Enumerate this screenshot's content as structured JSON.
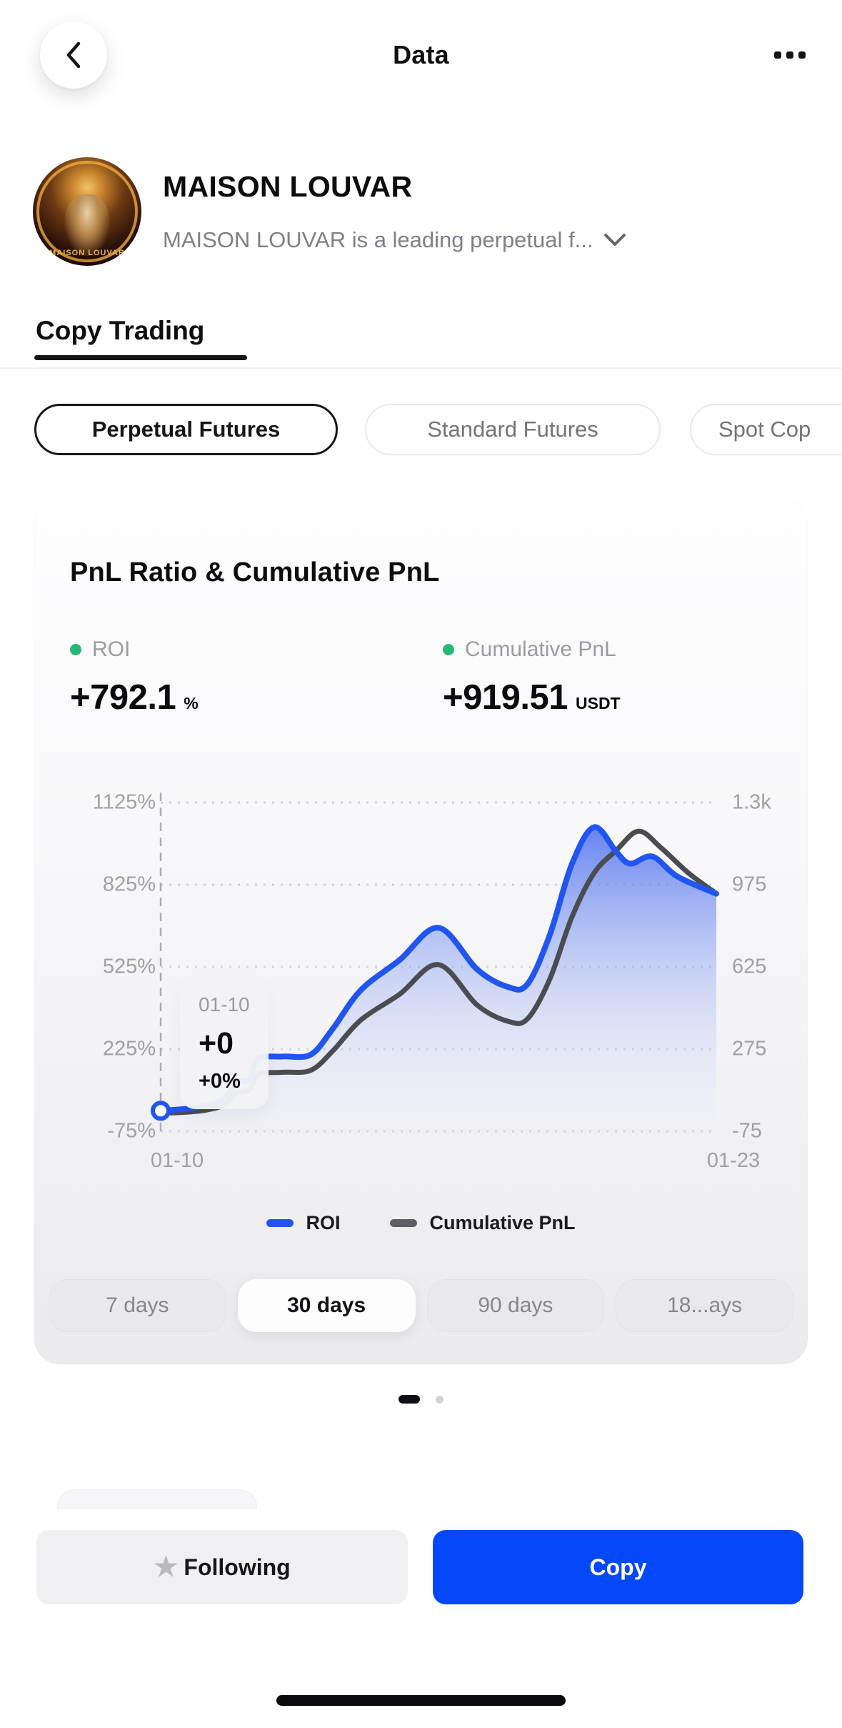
{
  "header": {
    "title": "Data"
  },
  "profile": {
    "name": "MAISON LOUVAR",
    "description": "MAISON LOUVAR is a leading perpetual f...",
    "avatar_text": "MAISON LOUVAR"
  },
  "tabs": {
    "copy_trading": "Copy Trading"
  },
  "filters": {
    "perpetual": "Perpetual Futures",
    "standard": "Standard Futures",
    "spot": "Spot Cop"
  },
  "card": {
    "title": "PnL Ratio & Cumulative PnL",
    "stats": {
      "roi": {
        "label": "ROI",
        "value": "+792.1",
        "unit": "%"
      },
      "pnl": {
        "label": "Cumulative PnL",
        "value": "+919.51",
        "unit": "USDT"
      }
    },
    "tooltip": {
      "date": "01-10",
      "value": "+0",
      "roi": "+0%"
    },
    "chart_data": {
      "type": "line",
      "title": "PnL Ratio & Cumulative PnL",
      "x_axis_labels": [
        "01-10",
        "01-23"
      ],
      "x_encoding": "x values are fractions of the date range 01-10 to 01-23",
      "left_axis": {
        "name": "ROI (%)",
        "ticks": [
          "1125%",
          "825%",
          "525%",
          "225%",
          "-75%"
        ],
        "min": -75,
        "max": 1125
      },
      "right_axis": {
        "name": "Cumulative PnL (USDT)",
        "ticks": [
          "1.3k",
          "975",
          "625",
          "275",
          "-75"
        ],
        "min": -75,
        "max": 1300
      },
      "grid": {
        "horizontal": "dotted",
        "cursor": "dashed vertical line at 01-10 with ring marker"
      },
      "legend": [
        {
          "name": "ROI",
          "color": "#2155f2"
        },
        {
          "name": "Cumulative PnL",
          "color": "#5d5f64"
        }
      ],
      "series": [
        {
          "name": "ROI",
          "axis": "left",
          "color": "#2155f2",
          "area_fill": true,
          "points": [
            [
              0,
              0
            ],
            [
              0.04,
              6
            ],
            [
              0.08,
              18
            ],
            [
              0.115,
              45
            ],
            [
              0.135,
              100
            ],
            [
              0.16,
              115
            ],
            [
              0.175,
              190
            ],
            [
              0.22,
              198
            ],
            [
              0.27,
              205
            ],
            [
              0.31,
              300
            ],
            [
              0.36,
              440
            ],
            [
              0.43,
              550
            ],
            [
              0.5,
              668
            ],
            [
              0.57,
              515
            ],
            [
              0.625,
              452
            ],
            [
              0.66,
              462
            ],
            [
              0.7,
              640
            ],
            [
              0.74,
              900
            ],
            [
              0.78,
              1035
            ],
            [
              0.82,
              945
            ],
            [
              0.845,
              902
            ],
            [
              0.885,
              928
            ],
            [
              0.93,
              855
            ],
            [
              1,
              792.1
            ]
          ]
        },
        {
          "name": "Cumulative PnL",
          "axis": "right",
          "color": "#4a4c52",
          "area_fill": false,
          "points": [
            [
              0,
              0
            ],
            [
              0.04,
              4
            ],
            [
              0.08,
              13
            ],
            [
              0.115,
              36
            ],
            [
              0.135,
              85
            ],
            [
              0.16,
              98
            ],
            [
              0.175,
              162
            ],
            [
              0.22,
              172
            ],
            [
              0.27,
              180
            ],
            [
              0.31,
              262
            ],
            [
              0.36,
              390
            ],
            [
              0.43,
              498
            ],
            [
              0.5,
              622
            ],
            [
              0.57,
              452
            ],
            [
              0.625,
              385
            ],
            [
              0.66,
              395
            ],
            [
              0.7,
              560
            ],
            [
              0.74,
              820
            ],
            [
              0.78,
              1005
            ],
            [
              0.82,
              1100
            ],
            [
              0.86,
              1180
            ],
            [
              0.9,
              1112
            ],
            [
              0.95,
              1005
            ],
            [
              1,
              919.51
            ]
          ]
        }
      ]
    },
    "ranges": {
      "r7": "7 days",
      "r30": "30 days",
      "r90": "90 days",
      "r180": "18...ays"
    }
  },
  "footer": {
    "following": "Following",
    "copy": "Copy"
  },
  "colors": {
    "accent_blue": "#0448fa",
    "roi_line": "#2155f2",
    "pnl_line": "#4a4c52",
    "green_dot": "#26b876",
    "grid_dotted": "#d4d4d9",
    "cursor_dashed": "#a9adb4"
  }
}
